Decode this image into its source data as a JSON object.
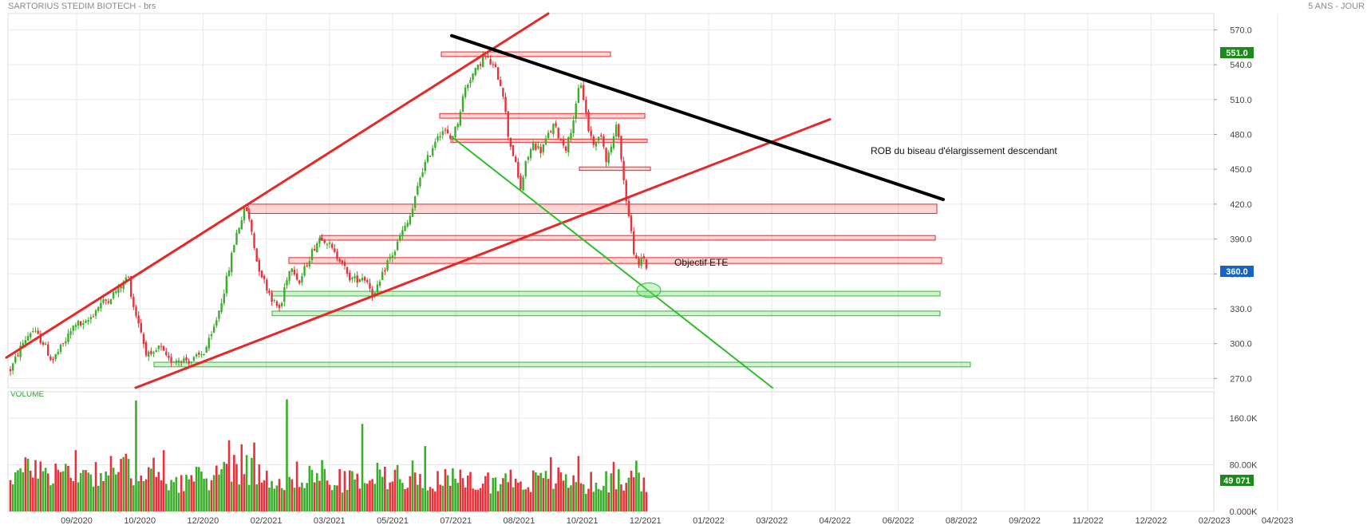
{
  "header": {
    "title": "SARTORIUS STEDIM BIOTECH - brs",
    "period": "5 ANS - JOUR"
  },
  "volume_label": "VOLUME",
  "colors": {
    "up": "#3aae2a",
    "down": "#e8313a",
    "support": "#2ebd2e",
    "resistance": "#e82828",
    "trend": "#000000",
    "price_badge": "#1e8a1e",
    "last_badge": "#1565c0"
  },
  "chart_data": {
    "type": "candlestick",
    "price_axis": {
      "ticks": [
        270.0,
        300.0,
        330.0,
        360.0,
        390.0,
        420.0,
        450.0,
        480.0,
        510.0,
        540.0,
        570.0
      ],
      "ylim": [
        262,
        584
      ]
    },
    "volume_axis": {
      "ticks": [
        "0.000K",
        "80.00K",
        "160.0K"
      ],
      "ylim": [
        0,
        205
      ]
    },
    "date_axis": [
      "09/2020",
      "10/2020",
      "12/2020",
      "02/2021",
      "03/2021",
      "05/2021",
      "07/2021",
      "08/2021",
      "10/2021",
      "12/2021",
      "01/2022",
      "03/2022",
      "04/2022",
      "06/2022",
      "08/2022",
      "09/2022",
      "11/2022",
      "12/2022",
      "02/2023",
      "04/2023"
    ],
    "badges": {
      "price_high": "551.0",
      "last": "360.0",
      "volume": "49 071"
    },
    "annotations": [
      "ROB du biseau d'élargissement descendant",
      "Objectif ETE"
    ],
    "price_anchors": [
      [
        0,
        264
      ],
      [
        5,
        268
      ],
      [
        15,
        280
      ],
      [
        28,
        300
      ],
      [
        40,
        312
      ],
      [
        55,
        300
      ],
      [
        65,
        285
      ],
      [
        80,
        300
      ],
      [
        95,
        318
      ],
      [
        105,
        315
      ],
      [
        115,
        324
      ],
      [
        125,
        334
      ],
      [
        135,
        338
      ],
      [
        145,
        345
      ],
      [
        155,
        352
      ],
      [
        160,
        360
      ],
      [
        163,
        348
      ],
      [
        168,
        330
      ],
      [
        175,
        316
      ],
      [
        182,
        294
      ],
      [
        190,
        287
      ],
      [
        200,
        298
      ],
      [
        210,
        285
      ],
      [
        225,
        287
      ],
      [
        240,
        285
      ],
      [
        255,
        292
      ],
      [
        265,
        306
      ],
      [
        275,
        330
      ],
      [
        285,
        358
      ],
      [
        295,
        392
      ],
      [
        308,
        418
      ],
      [
        315,
        398
      ],
      [
        322,
        370
      ],
      [
        332,
        352
      ],
      [
        345,
        333
      ],
      [
        352,
        330
      ],
      [
        358,
        355
      ],
      [
        366,
        368
      ],
      [
        375,
        352
      ],
      [
        385,
        370
      ],
      [
        393,
        382
      ],
      [
        402,
        393
      ],
      [
        410,
        388
      ],
      [
        420,
        376
      ],
      [
        428,
        373
      ],
      [
        435,
        358
      ],
      [
        445,
        355
      ],
      [
        455,
        358
      ],
      [
        462,
        352
      ],
      [
        468,
        340
      ],
      [
        476,
        352
      ],
      [
        485,
        370
      ],
      [
        495,
        380
      ],
      [
        502,
        394
      ],
      [
        510,
        402
      ],
      [
        518,
        418
      ],
      [
        528,
        448
      ],
      [
        538,
        462
      ],
      [
        548,
        480
      ],
      [
        556,
        484
      ],
      [
        564,
        476
      ],
      [
        572,
        486
      ],
      [
        582,
        518
      ],
      [
        590,
        530
      ],
      [
        598,
        536
      ],
      [
        606,
        548
      ],
      [
        614,
        542
      ],
      [
        622,
        534
      ],
      [
        630,
        518
      ],
      [
        637,
        478
      ],
      [
        645,
        458
      ],
      [
        652,
        432
      ],
      [
        660,
        458
      ],
      [
        668,
        472
      ],
      [
        678,
        466
      ],
      [
        686,
        478
      ],
      [
        694,
        488
      ],
      [
        702,
        476
      ],
      [
        710,
        468
      ],
      [
        716,
        486
      ],
      [
        722,
        504
      ],
      [
        727,
        528
      ],
      [
        732,
        508
      ],
      [
        738,
        482
      ],
      [
        746,
        470
      ],
      [
        753,
        482
      ],
      [
        760,
        458
      ],
      [
        766,
        470
      ],
      [
        774,
        490
      ],
      [
        780,
        448
      ],
      [
        786,
        418
      ],
      [
        790,
        400
      ],
      [
        795,
        376
      ],
      [
        800,
        364
      ],
      [
        805,
        378
      ],
      [
        810,
        366
      ],
      [
        813,
        360
      ]
    ],
    "volume_anchors": [
      [
        0,
        70
      ],
      [
        60,
        75
      ],
      [
        100,
        72
      ],
      [
        130,
        74
      ],
      [
        150,
        78
      ],
      [
        165,
        80
      ],
      [
        175,
        60
      ],
      [
        195,
        65
      ],
      [
        230,
        55
      ],
      [
        270,
        65
      ],
      [
        290,
        90
      ],
      [
        305,
        80
      ],
      [
        330,
        70
      ],
      [
        355,
        60
      ],
      [
        380,
        70
      ],
      [
        420,
        55
      ],
      [
        450,
        60
      ],
      [
        470,
        65
      ],
      [
        500,
        70
      ],
      [
        520,
        68
      ],
      [
        550,
        60
      ],
      [
        580,
        55
      ],
      [
        610,
        55
      ],
      [
        640,
        60
      ],
      [
        680,
        55
      ],
      [
        700,
        60
      ],
      [
        730,
        50
      ],
      [
        750,
        55
      ],
      [
        770,
        55
      ],
      [
        790,
        62
      ],
      [
        813,
        58
      ]
    ],
    "volume_spikes": [
      [
        43,
        88
      ],
      [
        95,
        105
      ],
      [
        139,
        95
      ],
      [
        160,
        90
      ],
      [
        170,
        190
      ],
      [
        194,
        92
      ],
      [
        206,
        105
      ],
      [
        288,
        122
      ],
      [
        302,
        115
      ],
      [
        320,
        118
      ],
      [
        359,
        192
      ],
      [
        403,
        88
      ],
      [
        454,
        150
      ],
      [
        533,
        112
      ],
      [
        690,
        93
      ],
      [
        726,
        95
      ],
      [
        768,
        85
      ],
      [
        796,
        87
      ]
    ],
    "support_zones": [
      {
        "x0": 341,
        "x1": 1178,
        "p_top": 345,
        "p_bot": 341
      },
      {
        "x0": 341,
        "x1": 1178,
        "p_top": 328,
        "p_bot": 324
      },
      {
        "x0": 193,
        "x1": 1216,
        "p_top": 284,
        "p_bot": 280
      }
    ],
    "resistance_zones": [
      {
        "x0": 553,
        "x1": 765,
        "p_top": 551,
        "p_bot": 547
      },
      {
        "x0": 551,
        "x1": 808,
        "p_top": 498,
        "p_bot": 494
      },
      {
        "x0": 565,
        "x1": 811,
        "p_top": 476,
        "p_bot": 474
      },
      {
        "x0": 726,
        "x1": 815,
        "p_top": 452,
        "p_bot": 449
      },
      {
        "x0": 311,
        "x1": 1174,
        "p_top": 420,
        "p_bot": 412
      },
      {
        "x0": 402,
        "x1": 1172,
        "p_top": 393,
        "p_bot": 389
      },
      {
        "x0": 362,
        "x1": 1180,
        "p_top": 374,
        "p_bot": 369
      }
    ],
    "trendlines": [
      {
        "color": "resistance",
        "width": 3,
        "x0": 8,
        "p0": 288,
        "x1": 687,
        "p1": 584
      },
      {
        "color": "resistance",
        "width": 3,
        "x0": 170,
        "p0": 262,
        "x1": 1040,
        "p1": 493
      },
      {
        "color": "trend",
        "width": 4,
        "x0": 566,
        "p0": 565,
        "x1": 1182,
        "p1": 424
      },
      {
        "color": "support",
        "width": 2,
        "x0": 566,
        "p0": 478,
        "x1": 968,
        "p1": 262
      }
    ],
    "target_ellipse": {
      "x": 813,
      "p": 346
    }
  }
}
